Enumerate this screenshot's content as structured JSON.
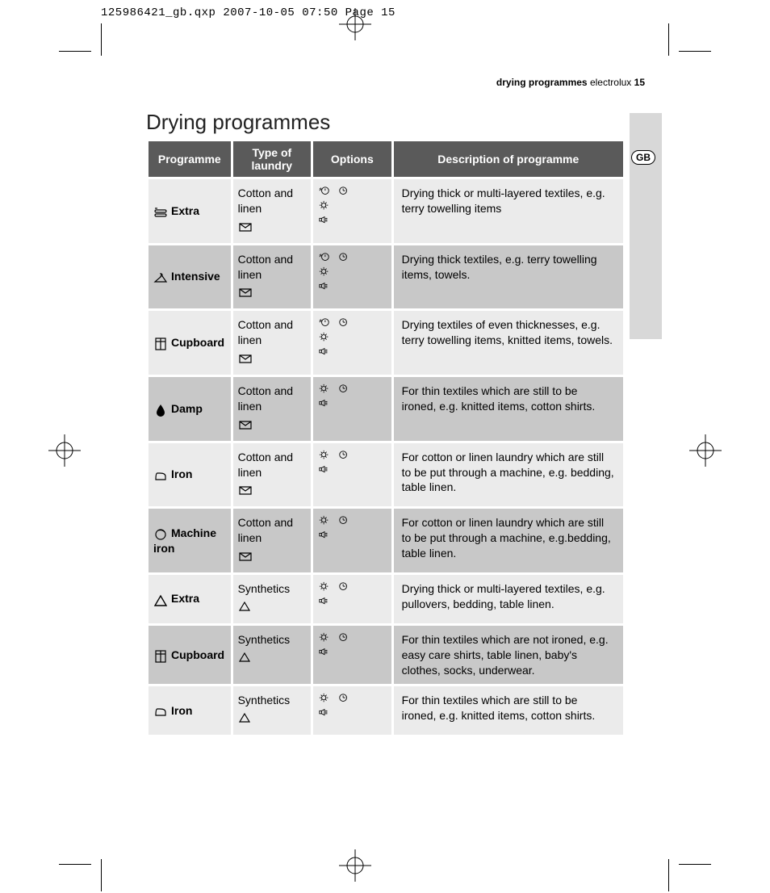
{
  "file_header": "125986421_gb.qxp  2007-10-05  07:50  Page 15",
  "page_header_bold": "drying programmes",
  "page_header_light": " electrolux ",
  "page_number": "15",
  "gb_label": "GB",
  "title": "Drying programmes",
  "columns": [
    "Programme",
    "Type of laundry",
    "Options",
    "Description of programme"
  ],
  "icons": {
    "extra_towel": "towel",
    "hanger": "hanger",
    "cupboard": "cupboard",
    "damp": "drop",
    "iron": "iron",
    "machine_iron": "machine-iron",
    "extra_syn": "triangle",
    "cotton_symbol": "cotton-envelope",
    "synthetic_symbol": "triangle-small",
    "delay": "delay-clock",
    "time": "clock",
    "delicate": "gear",
    "buzzer": "buzzer"
  },
  "rows": [
    {
      "shade": "light",
      "prog_icon": "towel",
      "prog_name": "Extra",
      "type_text": "Cotton and linen",
      "type_symbol": "cotton-envelope",
      "options": [
        [
          "delay-clock",
          "clock"
        ],
        [
          "gear"
        ],
        [
          "buzzer"
        ]
      ],
      "desc": "Drying thick or multi-layered textiles, e.g. terry towelling items"
    },
    {
      "shade": "dark",
      "prog_icon": "hanger",
      "prog_name": "Intensive",
      "type_text": "Cotton and linen",
      "type_symbol": "cotton-envelope",
      "options": [
        [
          "delay-clock",
          "clock"
        ],
        [
          "gear"
        ],
        [
          "buzzer"
        ]
      ],
      "desc": "Drying thick textiles, e.g. terry towelling items, towels."
    },
    {
      "shade": "light",
      "prog_icon": "cupboard",
      "prog_name": "Cupboard",
      "type_text": "Cotton and linen",
      "type_symbol": "cotton-envelope",
      "options": [
        [
          "delay-clock",
          "clock"
        ],
        [
          "gear"
        ],
        [
          "buzzer"
        ]
      ],
      "desc": "Drying textiles of even thicknesses, e.g. terry towelling items, knitted items, towels."
    },
    {
      "shade": "dark",
      "prog_icon": "drop",
      "prog_name": "Damp",
      "type_text": "Cotton and linen",
      "type_symbol": "cotton-envelope",
      "options": [
        [
          "gear",
          "clock"
        ],
        [
          "buzzer"
        ]
      ],
      "desc": "For thin textiles which are still to be ironed, e.g. knitted items, cotton shirts."
    },
    {
      "shade": "light",
      "prog_icon": "iron",
      "prog_name": "Iron",
      "type_text": "Cotton and linen",
      "type_symbol": "cotton-envelope",
      "options": [
        [
          "gear",
          "clock"
        ],
        [
          "buzzer"
        ]
      ],
      "desc": "For cotton or linen laundry which are still to be put through a machine, e.g. bedding, table linen."
    },
    {
      "shade": "dark",
      "prog_icon": "machine-iron",
      "prog_name": "Machine iron",
      "type_text": "Cotton and linen",
      "type_symbol": "cotton-envelope",
      "options": [
        [
          "gear",
          "clock"
        ],
        [
          "buzzer"
        ]
      ],
      "desc": "For cotton or linen laundry which are still to be put through a machine, e.g.bedding, table linen."
    },
    {
      "shade": "light",
      "prog_icon": "triangle",
      "prog_name": "Extra",
      "type_text": "Synthetics",
      "type_symbol": "triangle-small",
      "options": [
        [
          "gear",
          "clock"
        ],
        [
          "buzzer"
        ]
      ],
      "desc": "Drying thick or multi-layered textiles, e.g. pullovers, bedding, table linen."
    },
    {
      "shade": "dark",
      "prog_icon": "cupboard",
      "prog_name": "Cupboard",
      "type_text": "Synthetics",
      "type_symbol": "triangle-small",
      "options": [
        [
          "gear",
          "clock"
        ],
        [
          "buzzer"
        ]
      ],
      "desc": "For thin textiles which are not ironed, e.g. easy care shirts, table linen, baby's clothes, socks, underwear."
    },
    {
      "shade": "light",
      "prog_icon": "iron",
      "prog_name": "Iron",
      "type_text": "Synthetics",
      "type_symbol": "triangle-small",
      "options": [
        [
          "gear",
          "clock"
        ],
        [
          "buzzer"
        ]
      ],
      "desc": "For thin textiles which are still to be ironed, e.g. knitted items, cotton shirts."
    }
  ],
  "colors": {
    "header_bg": "#5a5a5a",
    "row_light": "#ebebeb",
    "row_dark": "#c8c8c8",
    "tab_bg": "#d8d8d8",
    "text": "#000000"
  }
}
